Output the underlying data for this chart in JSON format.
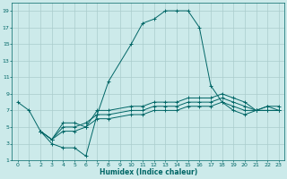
{
  "xlabel": "Humidex (Indice chaleur)",
  "bg_color": "#cceaea",
  "grid_color": "#aacccc",
  "line_color": "#006666",
  "xlim": [
    -0.5,
    23.5
  ],
  "ylim": [
    1,
    20
  ],
  "xticks": [
    0,
    1,
    2,
    3,
    4,
    5,
    6,
    7,
    8,
    9,
    10,
    11,
    12,
    13,
    14,
    15,
    16,
    17,
    18,
    19,
    20,
    21,
    22,
    23
  ],
  "yticks": [
    1,
    3,
    5,
    7,
    9,
    11,
    13,
    15,
    17,
    19
  ],
  "series": [
    {
      "x": [
        0,
        1,
        2,
        3,
        4,
        5,
        6,
        7,
        8,
        10,
        11,
        12,
        13,
        14,
        15,
        16,
        17,
        18,
        19,
        20,
        21,
        22,
        23
      ],
      "y": [
        8,
        7,
        4.5,
        3,
        2.5,
        2.5,
        1.5,
        6.5,
        10.5,
        15,
        17.5,
        18,
        19,
        19,
        19,
        17,
        10,
        8,
        7,
        6.5,
        7,
        7,
        7
      ]
    },
    {
      "x": [
        2,
        3,
        4,
        5,
        6,
        7,
        8,
        10,
        11,
        12,
        13,
        14,
        15,
        16,
        17,
        18,
        19,
        20,
        21,
        22,
        23
      ],
      "y": [
        4.5,
        3.5,
        4.5,
        4.5,
        5.0,
        6.0,
        6.0,
        6.5,
        6.5,
        7.0,
        7.0,
        7.0,
        7.5,
        7.5,
        7.5,
        8.0,
        7.5,
        7.0,
        7.0,
        7.0,
        7.0
      ]
    },
    {
      "x": [
        2,
        3,
        4,
        5,
        6,
        7,
        8,
        10,
        11,
        12,
        13,
        14,
        15,
        16,
        17,
        18,
        19,
        20,
        21,
        22,
        23
      ],
      "y": [
        4.5,
        3.5,
        5.0,
        5.0,
        5.5,
        6.5,
        6.5,
        7.0,
        7.0,
        7.5,
        7.5,
        7.5,
        8.0,
        8.0,
        8.0,
        8.5,
        8.0,
        7.5,
        7.0,
        7.5,
        7.0
      ]
    },
    {
      "x": [
        2,
        3,
        4,
        5,
        6,
        7,
        8,
        10,
        11,
        12,
        13,
        14,
        15,
        16,
        17,
        18,
        19,
        20,
        21,
        22,
        23
      ],
      "y": [
        4.5,
        3.5,
        5.5,
        5.5,
        5.0,
        7.0,
        7.0,
        7.5,
        7.5,
        8.0,
        8.0,
        8.0,
        8.5,
        8.5,
        8.5,
        9.0,
        8.5,
        8.0,
        7.0,
        7.5,
        7.5
      ]
    }
  ]
}
